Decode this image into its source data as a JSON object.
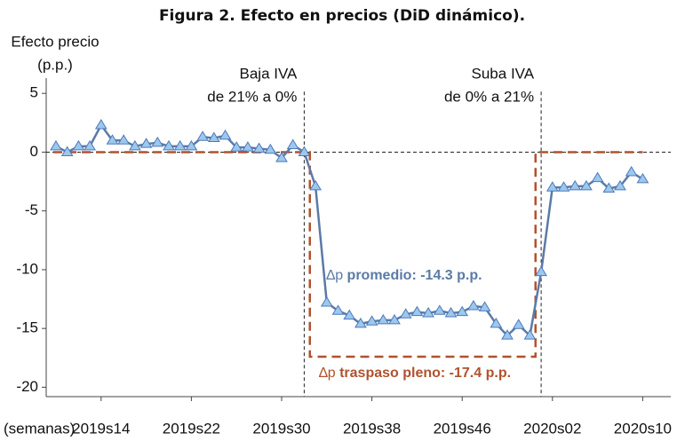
{
  "chart_data": {
    "type": "line",
    "title": "Figura 2. Efecto en precios (DiD dinámico).",
    "y_label": [
      "Efecto precio",
      "(p.p.)"
    ],
    "x_label": "(semanas)",
    "categories": [
      null,
      null,
      null,
      null,
      "2019s14",
      null,
      null,
      null,
      null,
      null,
      null,
      null,
      "2019s22",
      null,
      null,
      null,
      null,
      null,
      null,
      null,
      "2019s30",
      null,
      null,
      null,
      null,
      null,
      null,
      null,
      "2019s38",
      null,
      null,
      null,
      null,
      null,
      null,
      null,
      "2019s46",
      null,
      null,
      null,
      null,
      null,
      null,
      null,
      "2020s02",
      null,
      null,
      null,
      null,
      null,
      null,
      null,
      "2020s10"
    ],
    "series": [
      {
        "color": "#5b7aa6",
        "marker_color": "#9cc8ee",
        "style": "solid",
        "values": [
          0.5,
          0.0,
          0.5,
          0.5,
          2.3,
          1.0,
          1.0,
          0.5,
          0.7,
          0.8,
          0.5,
          0.5,
          0.5,
          1.3,
          1.2,
          1.4,
          0.4,
          0.4,
          0.3,
          0.2,
          -0.5,
          0.6,
          0.0,
          -2.9,
          -12.8,
          -13.5,
          -13.9,
          -14.6,
          -14.4,
          -14.3,
          -14.3,
          -13.8,
          -13.6,
          -13.7,
          -13.5,
          -13.7,
          -13.6,
          -13.1,
          -13.2,
          -14.6,
          -15.6,
          -14.7,
          -15.6,
          -10.2,
          -3.0,
          -3.0,
          -2.9,
          -2.9,
          -2.2,
          -3.1,
          -2.9,
          -1.7,
          -2.3
        ]
      },
      {
        "color": "#b0522e",
        "style": "step-dashed",
        "values": [
          0,
          0,
          0,
          0,
          0,
          0,
          0,
          0,
          0,
          0,
          0,
          0,
          0,
          0,
          0,
          0,
          0,
          0,
          0,
          0,
          0,
          0,
          0,
          -17.4,
          -17.4,
          -17.4,
          -17.4,
          -17.4,
          -17.4,
          -17.4,
          -17.4,
          -17.4,
          -17.4,
          -17.4,
          -17.4,
          -17.4,
          -17.4,
          -17.4,
          -17.4,
          -17.4,
          -17.4,
          -17.4,
          -17.4,
          0,
          0,
          0,
          0,
          0,
          0,
          0,
          0,
          0,
          0
        ]
      }
    ],
    "ylim": [
      -20.8,
      6.3
    ],
    "yticks": [
      5,
      0,
      -5,
      -10,
      -15,
      -20
    ],
    "events": [
      {
        "at": 22,
        "label": [
          "Baja IVA",
          "de 21% a 0%"
        ]
      },
      {
        "at": 43,
        "label": [
          "Suba IVA",
          "de 0% a 21%"
        ]
      }
    ],
    "annotations": [
      {
        "delta": "∆p",
        "text": " promedio: -14.3 p.p.",
        "color": "#5b7aa6"
      },
      {
        "delta": "∆p",
        "text": " traspaso pleno: -17.4 p.p.",
        "color": "#b0522e"
      }
    ]
  }
}
